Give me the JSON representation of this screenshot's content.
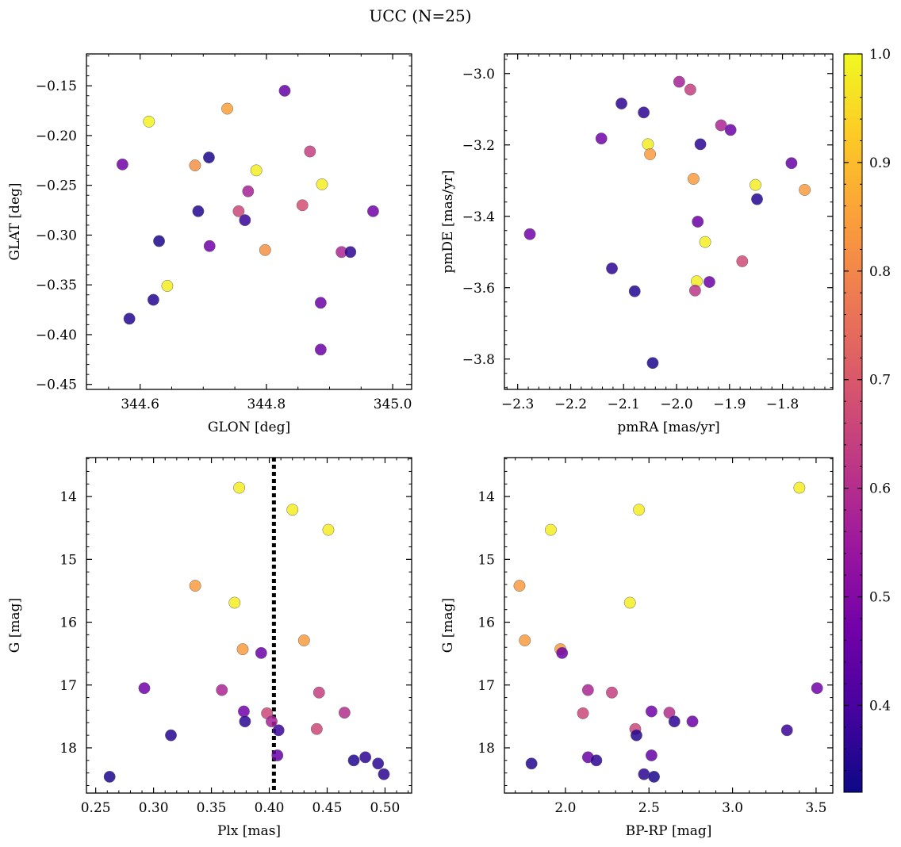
{
  "figure": {
    "title": "UCC (N=25)"
  },
  "colorbar": {
    "range": [
      0.32,
      1.0
    ],
    "ticks": [
      0.4,
      0.5,
      0.6,
      0.7,
      0.8,
      0.9,
      1.0
    ],
    "tick_labels": [
      "0.4",
      "0.5",
      "0.6",
      "0.7",
      "0.8",
      "0.9",
      "1.0"
    ],
    "colormap": "plasma"
  },
  "colormap_stops": [
    "#0d0887",
    "#46039f",
    "#7201a8",
    "#9c179e",
    "#bd3786",
    "#d8576b",
    "#ed7953",
    "#fb9f3a",
    "#fdca26",
    "#f0f921"
  ],
  "chart_data": [
    {
      "type": "scatter",
      "xlabel": "GLON [deg]",
      "ylabel": "GLAT [deg]",
      "xlim": [
        344.515,
        345.03
      ],
      "ylim": [
        -0.455,
        -0.118
      ],
      "xticks": [
        344.6,
        344.8,
        345.0
      ],
      "xtick_labels": [
        "344.6",
        "344.8",
        "345.0"
      ],
      "yticks": [
        -0.15,
        -0.2,
        -0.25,
        -0.3,
        -0.35,
        -0.4,
        -0.45
      ],
      "ytick_labels": [
        "−0.15",
        "−0.20",
        "−0.25",
        "−0.30",
        "−0.35",
        "−0.40",
        "−0.45"
      ],
      "points": [
        {
          "x": 344.829,
          "y": -0.155,
          "c": 0.45
        },
        {
          "x": 344.614,
          "y": -0.186,
          "c": 0.99
        },
        {
          "x": 344.738,
          "y": -0.173,
          "c": 0.85
        },
        {
          "x": 344.572,
          "y": -0.229,
          "c": 0.47
        },
        {
          "x": 344.709,
          "y": -0.222,
          "c": 0.34
        },
        {
          "x": 344.687,
          "y": -0.23,
          "c": 0.82
        },
        {
          "x": 344.869,
          "y": -0.216,
          "c": 0.64
        },
        {
          "x": 344.784,
          "y": -0.235,
          "c": 0.98
        },
        {
          "x": 344.888,
          "y": -0.249,
          "c": 0.98
        },
        {
          "x": 344.771,
          "y": -0.256,
          "c": 0.57
        },
        {
          "x": 344.692,
          "y": -0.276,
          "c": 0.35
        },
        {
          "x": 344.756,
          "y": -0.276,
          "c": 0.66
        },
        {
          "x": 344.857,
          "y": -0.27,
          "c": 0.68
        },
        {
          "x": 344.969,
          "y": -0.276,
          "c": 0.47
        },
        {
          "x": 344.766,
          "y": -0.285,
          "c": 0.38
        },
        {
          "x": 344.63,
          "y": -0.306,
          "c": 0.34
        },
        {
          "x": 344.71,
          "y": -0.311,
          "c": 0.47
        },
        {
          "x": 344.798,
          "y": -0.315,
          "c": 0.82
        },
        {
          "x": 344.919,
          "y": -0.317,
          "c": 0.58
        },
        {
          "x": 344.933,
          "y": -0.317,
          "c": 0.36
        },
        {
          "x": 344.643,
          "y": -0.351,
          "c": 0.98
        },
        {
          "x": 344.621,
          "y": -0.365,
          "c": 0.35
        },
        {
          "x": 344.886,
          "y": -0.368,
          "c": 0.46
        },
        {
          "x": 344.583,
          "y": -0.384,
          "c": 0.35
        },
        {
          "x": 344.886,
          "y": -0.415,
          "c": 0.46
        }
      ]
    },
    {
      "type": "scatter",
      "xlabel": "pmRA [mas/yr]",
      "ylabel": "pmDE [mas/yr]",
      "xlim": [
        -2.325,
        -1.705
      ],
      "ylim": [
        -3.885,
        -2.945
      ],
      "xticks": [
        -2.3,
        -2.2,
        -2.1,
        -2.0,
        -1.9,
        -1.8
      ],
      "xtick_labels": [
        "−2.3",
        "−2.2",
        "−2.1",
        "−2.0",
        "−1.9",
        "−1.8"
      ],
      "yticks": [
        -3.0,
        -3.2,
        -3.4,
        -3.6,
        -3.8
      ],
      "ytick_labels": [
        "−3.0",
        "−3.2",
        "−3.4",
        "−3.6",
        "−3.8"
      ],
      "points": [
        {
          "x": -1.995,
          "y": -3.023,
          "c": 0.57
        },
        {
          "x": -1.974,
          "y": -3.045,
          "c": 0.64
        },
        {
          "x": -2.104,
          "y": -3.084,
          "c": 0.36
        },
        {
          "x": -2.062,
          "y": -3.109,
          "c": 0.36
        },
        {
          "x": -1.916,
          "y": -3.145,
          "c": 0.58
        },
        {
          "x": -1.898,
          "y": -3.158,
          "c": 0.46
        },
        {
          "x": -2.142,
          "y": -3.182,
          "c": 0.47
        },
        {
          "x": -2.054,
          "y": -3.198,
          "c": 0.98
        },
        {
          "x": -1.955,
          "y": -3.198,
          "c": 0.36
        },
        {
          "x": -2.05,
          "y": -3.226,
          "c": 0.84
        },
        {
          "x": -1.783,
          "y": -3.251,
          "c": 0.45
        },
        {
          "x": -1.968,
          "y": -3.295,
          "c": 0.84
        },
        {
          "x": -1.851,
          "y": -3.312,
          "c": 0.98
        },
        {
          "x": -1.758,
          "y": -3.326,
          "c": 0.84
        },
        {
          "x": -1.848,
          "y": -3.352,
          "c": 0.35
        },
        {
          "x": -1.96,
          "y": -3.415,
          "c": 0.46
        },
        {
          "x": -2.277,
          "y": -3.45,
          "c": 0.47
        },
        {
          "x": -1.946,
          "y": -3.472,
          "c": 0.98
        },
        {
          "x": -1.876,
          "y": -3.526,
          "c": 0.67
        },
        {
          "x": -2.122,
          "y": -3.546,
          "c": 0.36
        },
        {
          "x": -1.962,
          "y": -3.582,
          "c": 0.98
        },
        {
          "x": -1.938,
          "y": -3.584,
          "c": 0.46
        },
        {
          "x": -1.965,
          "y": -3.608,
          "c": 0.62
        },
        {
          "x": -2.079,
          "y": -3.61,
          "c": 0.35
        },
        {
          "x": -2.045,
          "y": -3.811,
          "c": 0.34
        }
      ]
    },
    {
      "type": "scatter",
      "xlabel": "Plx [mas]",
      "ylabel": "G [mag]",
      "xlim": [
        0.242,
        0.523
      ],
      "ylim": [
        18.72,
        13.38
      ],
      "y_inverted": true,
      "vline_x": 0.404,
      "xticks": [
        0.25,
        0.3,
        0.35,
        0.4,
        0.45,
        0.5
      ],
      "xtick_labels": [
        "0.25",
        "0.30",
        "0.35",
        "0.40",
        "0.45",
        "0.50"
      ],
      "yticks": [
        14,
        15,
        16,
        17,
        18
      ],
      "ytick_labels": [
        "14",
        "15",
        "16",
        "17",
        "18"
      ],
      "points": [
        {
          "x": 0.374,
          "y": 13.86,
          "c": 0.98
        },
        {
          "x": 0.42,
          "y": 14.21,
          "c": 0.98
        },
        {
          "x": 0.451,
          "y": 14.53,
          "c": 0.98
        },
        {
          "x": 0.336,
          "y": 15.42,
          "c": 0.84
        },
        {
          "x": 0.37,
          "y": 15.69,
          "c": 0.98
        },
        {
          "x": 0.43,
          "y": 16.29,
          "c": 0.84
        },
        {
          "x": 0.377,
          "y": 16.43,
          "c": 0.84
        },
        {
          "x": 0.393,
          "y": 16.49,
          "c": 0.46
        },
        {
          "x": 0.292,
          "y": 17.05,
          "c": 0.47
        },
        {
          "x": 0.359,
          "y": 17.08,
          "c": 0.58
        },
        {
          "x": 0.443,
          "y": 17.12,
          "c": 0.64
        },
        {
          "x": 0.378,
          "y": 17.42,
          "c": 0.47
        },
        {
          "x": 0.465,
          "y": 17.44,
          "c": 0.6
        },
        {
          "x": 0.398,
          "y": 17.45,
          "c": 0.66
        },
        {
          "x": 0.379,
          "y": 17.58,
          "c": 0.36
        },
        {
          "x": 0.402,
          "y": 17.58,
          "c": 0.57
        },
        {
          "x": 0.441,
          "y": 17.7,
          "c": 0.66
        },
        {
          "x": 0.408,
          "y": 17.72,
          "c": 0.38
        },
        {
          "x": 0.315,
          "y": 17.8,
          "c": 0.35
        },
        {
          "x": 0.407,
          "y": 18.12,
          "c": 0.45
        },
        {
          "x": 0.483,
          "y": 18.15,
          "c": 0.36
        },
        {
          "x": 0.473,
          "y": 18.2,
          "c": 0.35
        },
        {
          "x": 0.494,
          "y": 18.25,
          "c": 0.36
        },
        {
          "x": 0.499,
          "y": 18.42,
          "c": 0.36
        },
        {
          "x": 0.262,
          "y": 18.46,
          "c": 0.34
        }
      ]
    },
    {
      "type": "scatter",
      "xlabel": "BP-RP [mag]",
      "ylabel": "G [mag]",
      "xlim": [
        1.635,
        3.6
      ],
      "ylim": [
        18.72,
        13.38
      ],
      "y_inverted": true,
      "xticks": [
        2.0,
        2.5,
        3.0,
        3.5
      ],
      "xtick_labels": [
        "2.0",
        "2.5",
        "3.0",
        "3.5"
      ],
      "yticks": [
        14,
        15,
        16,
        17,
        18
      ],
      "ytick_labels": [
        "14",
        "15",
        "16",
        "17",
        "18"
      ],
      "points": [
        {
          "x": 3.4,
          "y": 13.86,
          "c": 0.98
        },
        {
          "x": 2.44,
          "y": 14.21,
          "c": 0.98
        },
        {
          "x": 1.912,
          "y": 14.53,
          "c": 0.98
        },
        {
          "x": 1.725,
          "y": 15.42,
          "c": 0.84
        },
        {
          "x": 2.386,
          "y": 15.69,
          "c": 0.98
        },
        {
          "x": 1.757,
          "y": 16.29,
          "c": 0.84
        },
        {
          "x": 1.97,
          "y": 16.43,
          "c": 0.84
        },
        {
          "x": 1.98,
          "y": 16.49,
          "c": 0.46
        },
        {
          "x": 3.506,
          "y": 17.05,
          "c": 0.47
        },
        {
          "x": 2.135,
          "y": 17.08,
          "c": 0.58
        },
        {
          "x": 2.278,
          "y": 17.12,
          "c": 0.64
        },
        {
          "x": 2.515,
          "y": 17.42,
          "c": 0.47
        },
        {
          "x": 2.622,
          "y": 17.44,
          "c": 0.6
        },
        {
          "x": 2.105,
          "y": 17.45,
          "c": 0.66
        },
        {
          "x": 2.652,
          "y": 17.58,
          "c": 0.36
        },
        {
          "x": 2.76,
          "y": 17.58,
          "c": 0.46
        },
        {
          "x": 2.418,
          "y": 17.7,
          "c": 0.66
        },
        {
          "x": 3.326,
          "y": 17.72,
          "c": 0.38
        },
        {
          "x": 2.425,
          "y": 17.8,
          "c": 0.35
        },
        {
          "x": 2.515,
          "y": 18.12,
          "c": 0.45
        },
        {
          "x": 2.135,
          "y": 18.15,
          "c": 0.46
        },
        {
          "x": 2.185,
          "y": 18.2,
          "c": 0.36
        },
        {
          "x": 1.797,
          "y": 18.25,
          "c": 0.35
        },
        {
          "x": 2.47,
          "y": 18.42,
          "c": 0.36
        },
        {
          "x": 2.53,
          "y": 18.46,
          "c": 0.34
        }
      ]
    }
  ]
}
